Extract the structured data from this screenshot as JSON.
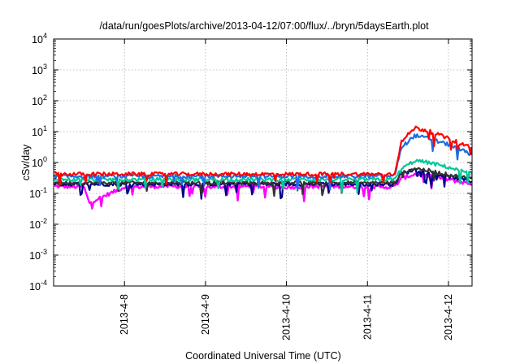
{
  "chart_data": {
    "type": "line",
    "title": "/data/run/goesPlots/archive/2013-04-12/07:00/flux/../bryn/5daysEarth.plot",
    "xlabel": "Coordinated Universal Time (UTC)",
    "ylabel": "cSv/day",
    "yscale": "log",
    "ylim": [
      0.0001,
      10000
    ],
    "yticks": [
      {
        "value": 0.0001,
        "base": "10",
        "exp": "-4"
      },
      {
        "value": 0.001,
        "base": "10",
        "exp": "-3"
      },
      {
        "value": 0.01,
        "base": "10",
        "exp": "-2"
      },
      {
        "value": 0.1,
        "base": "10",
        "exp": "-1"
      },
      {
        "value": 1,
        "base": "10",
        "exp": "0"
      },
      {
        "value": 10,
        "base": "10",
        "exp": "1"
      },
      {
        "value": 100,
        "base": "10",
        "exp": "2"
      },
      {
        "value": 1000,
        "base": "10",
        "exp": "3"
      },
      {
        "value": 10000,
        "base": "10",
        "exp": "4"
      }
    ],
    "xlim": [
      "2013-04-07T03:00",
      "2013-04-12T07:00"
    ],
    "xticks": [
      "2013-4-8",
      "2013-4-9",
      "2013-4-10",
      "2013-4-11",
      "2013-4-12"
    ],
    "grid": true,
    "series": [
      {
        "color": "#ff00ff",
        "x": [
          "2013-04-07T03:00",
          "2013-04-07T12:00",
          "2013-04-07T13:30",
          "2013-04-08T00:00",
          "2013-04-08T12:00",
          "2013-04-09T00:00",
          "2013-04-09T12:00",
          "2013-04-10T00:00",
          "2013-04-10T12:00",
          "2013-04-11T00:00",
          "2013-04-11T08:00",
          "2013-04-11T10:00",
          "2013-04-11T14:00",
          "2013-04-11T18:00",
          "2013-04-12T00:00",
          "2013-04-12T07:00"
        ],
        "y": [
          0.17,
          0.16,
          0.05,
          0.16,
          0.17,
          0.16,
          0.17,
          0.16,
          0.17,
          0.16,
          0.16,
          0.3,
          0.42,
          0.36,
          0.28,
          0.2
        ]
      },
      {
        "color": "#00008b",
        "x": [
          "2013-04-07T03:00",
          "2013-04-08T00:00",
          "2013-04-09T00:00",
          "2013-04-10T00:00",
          "2013-04-11T00:00",
          "2013-04-11T08:00",
          "2013-04-11T10:00",
          "2013-04-11T14:00",
          "2013-04-11T18:00",
          "2013-04-12T00:00",
          "2013-04-12T07:00"
        ],
        "y": [
          0.2,
          0.2,
          0.2,
          0.2,
          0.2,
          0.2,
          0.42,
          0.6,
          0.5,
          0.35,
          0.25
        ]
      },
      {
        "color": "#333333",
        "x": [
          "2013-04-07T03:00",
          "2013-04-08T00:00",
          "2013-04-09T00:00",
          "2013-04-10T00:00",
          "2013-04-11T00:00",
          "2013-04-11T08:00",
          "2013-04-11T10:00",
          "2013-04-11T14:00",
          "2013-04-11T18:00",
          "2013-04-12T00:00",
          "2013-04-12T07:00"
        ],
        "y": [
          0.22,
          0.22,
          0.22,
          0.22,
          0.22,
          0.22,
          0.45,
          0.65,
          0.55,
          0.4,
          0.3
        ]
      },
      {
        "color": "#00c896",
        "x": [
          "2013-04-07T03:00",
          "2013-04-08T00:00",
          "2013-04-09T00:00",
          "2013-04-10T00:00",
          "2013-04-11T00:00",
          "2013-04-11T08:00",
          "2013-04-11T10:00",
          "2013-04-11T14:00",
          "2013-04-11T18:00",
          "2013-04-12T00:00",
          "2013-04-12T07:00"
        ],
        "y": [
          0.28,
          0.28,
          0.28,
          0.28,
          0.28,
          0.28,
          0.6,
          1.15,
          1.0,
          0.7,
          0.42
        ]
      },
      {
        "color": "#1e6ee6",
        "x": [
          "2013-04-07T03:00",
          "2013-04-08T00:00",
          "2013-04-09T00:00",
          "2013-04-10T00:00",
          "2013-04-11T00:00",
          "2013-04-11T08:00",
          "2013-04-11T10:00",
          "2013-04-11T14:00",
          "2013-04-11T18:00",
          "2013-04-12T00:00",
          "2013-04-12T07:00"
        ],
        "y": [
          0.36,
          0.36,
          0.36,
          0.36,
          0.36,
          0.36,
          3.0,
          7.5,
          6.0,
          3.8,
          1.8
        ]
      },
      {
        "color": "#ff0000",
        "x": [
          "2013-04-07T03:00",
          "2013-04-08T00:00",
          "2013-04-09T00:00",
          "2013-04-10T00:00",
          "2013-04-11T00:00",
          "2013-04-11T08:00",
          "2013-04-11T10:00",
          "2013-04-11T14:00",
          "2013-04-11T18:00",
          "2013-04-12T00:00",
          "2013-04-12T07:00"
        ],
        "y": [
          0.42,
          0.42,
          0.42,
          0.42,
          0.42,
          0.42,
          4.5,
          13.5,
          10.5,
          6.0,
          3.0
        ]
      }
    ]
  }
}
